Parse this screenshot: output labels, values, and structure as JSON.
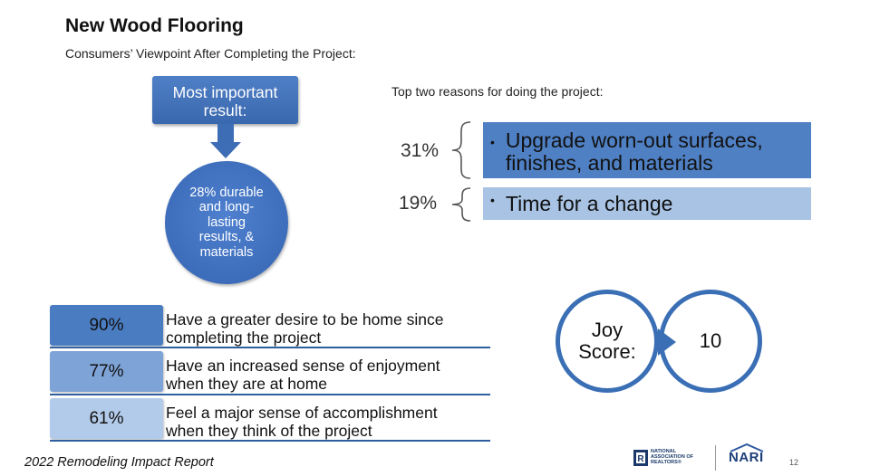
{
  "header": {
    "title": "New Wood Flooring",
    "subtitle": "Consumers’ Viewpoint After Completing the Project:"
  },
  "result": {
    "box_label_line1": "Most important",
    "box_label_line2": "result:",
    "circle_text_lines": [
      "28% durable",
      "and long-",
      "lasting",
      "results, &",
      "materials"
    ]
  },
  "reasons": {
    "heading": "Top two reasons for doing the project:",
    "items": [
      {
        "percent": "31%",
        "bullet": "•",
        "text_line1": "Upgrade worn-out surfaces,",
        "text_line2": "finishes, and materials",
        "color": "#4f80c4"
      },
      {
        "percent": "19%",
        "bullet": "•",
        "text_line1": "Time for a change",
        "color": "#a8c3e4"
      }
    ]
  },
  "stats": [
    {
      "percent": "90%",
      "line1": "Have a greater desire to be home since",
      "line2": "completing the project",
      "color": "#4a7cc1"
    },
    {
      "percent": "77%",
      "line1": "Have an increased sense of enjoyment",
      "line2": "when they are at home",
      "color": "#7ea3d6"
    },
    {
      "percent": "61%",
      "line1": "Feel a major sense of accomplishment",
      "line2": "when they think of the project",
      "color": "#b3cbea"
    }
  ],
  "joy": {
    "label_line1": "Joy",
    "label_line2": "Score:",
    "value": "10"
  },
  "footer": {
    "report_title": "2022 Remodeling Impact Report",
    "logo1_text_lines": [
      "NATIONAL",
      "ASSOCIATION OF",
      "REALTORS®"
    ],
    "logo2_text": "NARI",
    "page_number": "12"
  }
}
